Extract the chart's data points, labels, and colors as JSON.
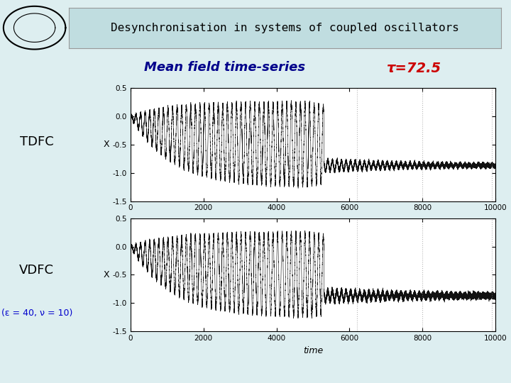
{
  "title_main": "Desynchronisation in systems of coupled oscillators",
  "title_sub": "Mean field time-series",
  "tau_label": "τ=72.5",
  "label_tdfc": "TDFC",
  "label_vdfc": "VDFC",
  "label_params": "(ε = 40, ν = 10)",
  "xlabel": "time",
  "ylabel": "X",
  "xlim": [
    0,
    10000
  ],
  "ylim": [
    -1.5,
    0.5
  ],
  "yticks": [
    -1.5,
    -1.0,
    -0.5,
    0.0,
    0.5
  ],
  "xticks": [
    0,
    2000,
    4000,
    6000,
    8000,
    10000
  ],
  "bg_color": "#ddeef0",
  "header_bg": "#c0dde0",
  "title_color": "#000000",
  "sub_color": "#00008B",
  "tau_color": "#cc0000",
  "params_color": "#0000cc",
  "line_color": "#111111",
  "dot_color": "#888888",
  "N": 50000,
  "transition_t": 5300,
  "osc_freq": 0.008,
  "grow_rate": 0.0008,
  "steady_mean": -0.87,
  "steady_amp": 0.1,
  "steady_decay": 0.0004,
  "noise_phase1": 0.015,
  "noise_phase2_tdfc": 0.018,
  "noise_phase2_vdfc": 0.025,
  "seed_tdfc": 10,
  "seed_vdfc": 20,
  "peak_amp": 0.75,
  "peak_t": 4800,
  "rise_rate": 0.0009
}
